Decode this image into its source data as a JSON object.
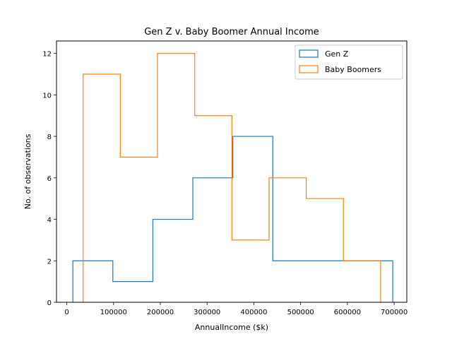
{
  "chart_data": {
    "type": "histogram",
    "title": "Gen Z v. Baby Boomer Annual Income",
    "xlabel": "AnnualIncome ($k)",
    "ylabel": "No. of observations",
    "xlim": [
      -22000,
      727000
    ],
    "ylim": [
      0,
      12.6
    ],
    "x_ticks": [
      0,
      100000,
      200000,
      300000,
      400000,
      500000,
      600000,
      700000
    ],
    "x_tick_labels": [
      "0",
      "100000",
      "200000",
      "300000",
      "400000",
      "500000",
      "600000",
      "700000"
    ],
    "y_ticks": [
      0,
      2,
      4,
      6,
      8,
      10,
      12
    ],
    "y_tick_labels": [
      "0",
      "2",
      "4",
      "6",
      "8",
      "10",
      "12"
    ],
    "grid": false,
    "legend_position": "top-right",
    "histtype": "step",
    "series": [
      {
        "name": "Gen Z",
        "color": "#1f77b4",
        "bin_edges": [
          13000,
          98500,
          184000,
          269500,
          355000,
          440500,
          526000,
          611500,
          697000
        ],
        "counts": [
          2,
          1,
          4,
          6,
          8,
          2,
          2,
          2
        ]
      },
      {
        "name": "Baby Boomers",
        "color": "#ff7f0e",
        "bin_edges": [
          35000,
          114500,
          194000,
          273500,
          353000,
          432500,
          512000,
          591500,
          671000
        ],
        "counts": [
          11,
          7,
          12,
          9,
          3,
          6,
          5,
          2
        ]
      }
    ]
  }
}
